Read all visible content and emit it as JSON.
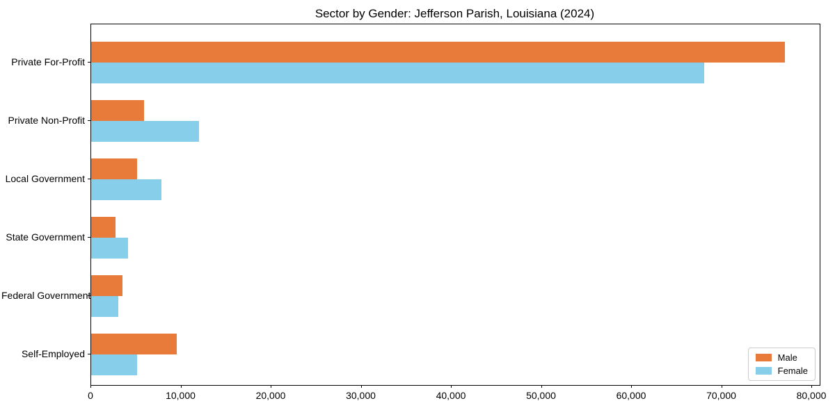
{
  "title": "Sector by Gender: Jefferson Parish, Louisiana (2024)",
  "chart_data": {
    "type": "bar",
    "orientation": "horizontal",
    "title": "Sector by Gender: Jefferson Parish, Louisiana (2024)",
    "categories": [
      "Private For-Profit",
      "Private Non-Profit",
      "Local Government",
      "State Government",
      "Federal Government",
      "Self-Employed"
    ],
    "series": [
      {
        "name": "Male",
        "color": "#E87B3A",
        "values": [
          77000,
          5900,
          5100,
          2700,
          3500,
          9500
        ]
      },
      {
        "name": "Female",
        "color": "#87CEEB",
        "values": [
          68000,
          12000,
          7800,
          4100,
          3000,
          5100
        ]
      }
    ],
    "xlim": [
      0,
      80850
    ],
    "xticks": [
      0,
      10000,
      20000,
      30000,
      40000,
      50000,
      60000,
      70000,
      80000
    ],
    "xtick_labels": [
      "0",
      "10,000",
      "20,000",
      "30,000",
      "40,000",
      "50,000",
      "60,000",
      "70,000",
      "80,000"
    ],
    "xlabel": "",
    "ylabel": "",
    "grid": false,
    "legend_position": "lower right"
  }
}
